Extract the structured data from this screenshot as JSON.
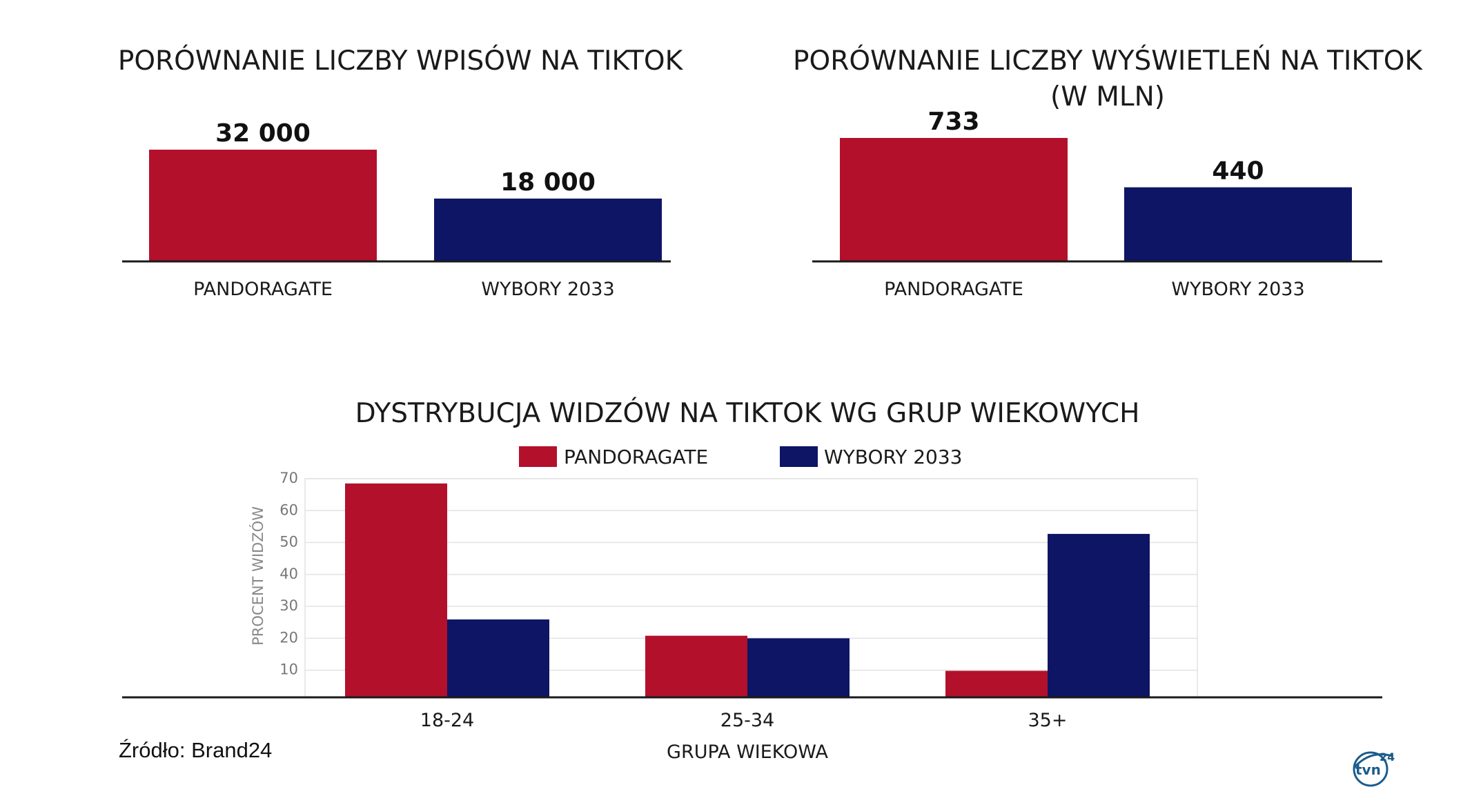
{
  "source": "Źródło: Brand24",
  "logo": {
    "text": "tvn",
    "suffix": "24",
    "color": "#1b5c8c",
    "icon": "tvn24-logo-icon"
  },
  "colors": {
    "pandoragate": "#b3102c",
    "wybory": "#0e1565",
    "axis": "#1a1a1a",
    "grid": "#e2e2e2"
  },
  "chart_data": [
    {
      "type": "bar",
      "title": [
        "PORÓWNANIE LICZBY WPISÓW NA TIKTOK"
      ],
      "categories": [
        "PANDORAGATE",
        "WYBORY 2033"
      ],
      "values": [
        32000,
        18000
      ],
      "value_labels": [
        "32 000",
        "18 000"
      ],
      "ylim": [
        0,
        32000
      ],
      "xlabel": "",
      "ylabel": "",
      "grid": false
    },
    {
      "type": "bar",
      "title": [
        "PORÓWNANIE LICZBY WYŚWIETLEŃ NA TIKTOK",
        "(W MLN)"
      ],
      "categories": [
        "PANDORAGATE",
        "WYBORY 2033"
      ],
      "values": [
        733,
        440
      ],
      "value_labels": [
        "733",
        "440"
      ],
      "ylim": [
        0,
        733
      ],
      "xlabel": "",
      "ylabel": "",
      "grid": false
    },
    {
      "type": "bar",
      "title": [
        "DYSTRYBUCJA WIDZÓW NA TIKTOK WG GRUP WIEKOWYCH"
      ],
      "categories": [
        "18-24",
        "25-34",
        "35+"
      ],
      "series": [
        {
          "name": "PANDORAGATE",
          "values": [
            68.5,
            20.8,
            9.8
          ]
        },
        {
          "name": "WYBORY 2033",
          "values": [
            25.9,
            20.0,
            52.7
          ]
        }
      ],
      "yticks": [
        "10",
        "20",
        "30",
        "40",
        "50",
        "60",
        "70"
      ],
      "ytick_values": [
        10,
        20,
        30,
        40,
        50,
        60,
        70
      ],
      "ylim": [
        1.5,
        70
      ],
      "xlabel": "GRUPA WIEKOWA",
      "ylabel": "PROCENT WIDZÓW",
      "legend": "top-center",
      "grid": true
    }
  ]
}
